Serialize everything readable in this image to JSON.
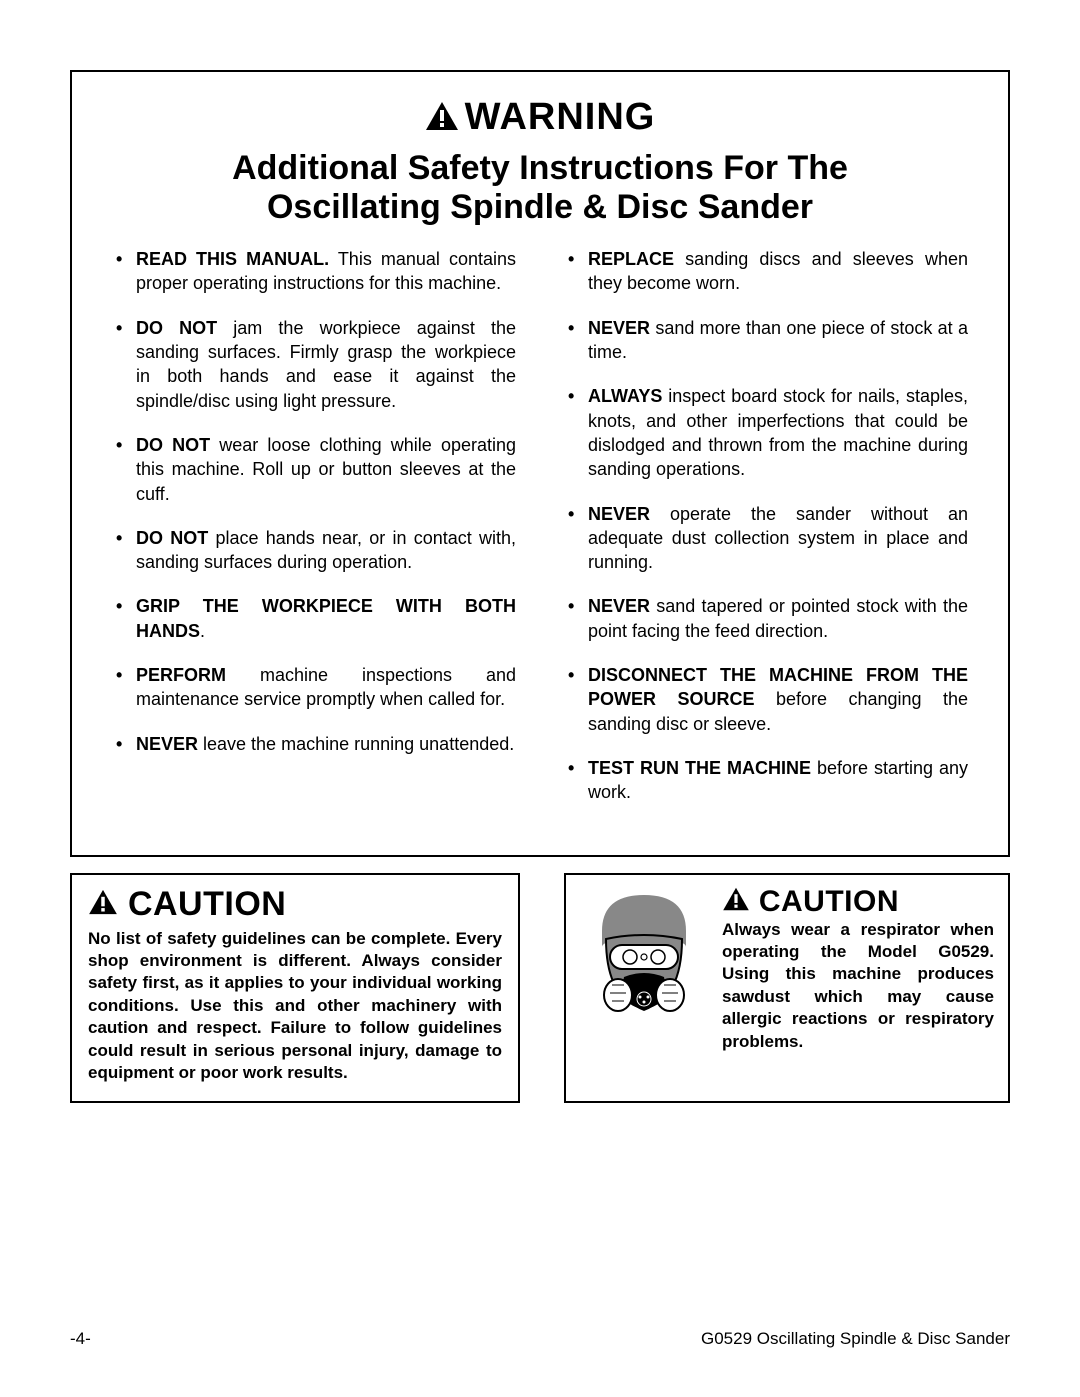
{
  "warning": {
    "header": "WARNING",
    "subtitle_line1": "Additional Safety Instructions For The",
    "subtitle_line2": "Oscillating Spindle & Disc Sander",
    "left_items": [
      {
        "bold": "READ THIS MANUAL.",
        "rest": " This manual contains proper operating instructions for this machine."
      },
      {
        "bold": "DO NOT",
        "rest": " jam the workpiece against the sanding surfaces. Firmly grasp the workpiece in both hands and ease it against the spindle/disc using light pressure."
      },
      {
        "bold": "DO NOT",
        "rest": " wear loose clothing while operating this machine. Roll up or button sleeves at the cuff."
      },
      {
        "bold": "DO NOT",
        "rest": " place hands near, or in contact with, sanding surfaces during operation."
      },
      {
        "bold": "GRIP THE WORKPIECE WITH BOTH HANDS",
        "rest": "."
      },
      {
        "bold": "PERFORM",
        "rest": " machine inspections and maintenance service promptly when called for."
      },
      {
        "bold": "NEVER",
        "rest": " leave the machine running unattended."
      }
    ],
    "right_items": [
      {
        "bold": "REPLACE",
        "rest": " sanding discs and sleeves when they become worn."
      },
      {
        "bold": "NEVER",
        "rest": " sand more than one piece of stock at a time."
      },
      {
        "bold": "ALWAYS",
        "rest": " inspect board stock for nails, staples, knots, and other imperfections that could be dislodged and thrown from the machine during sanding operations."
      },
      {
        "bold": "NEVER",
        "rest": " operate the sander without an adequate dust collection system in place and running."
      },
      {
        "bold": "NEVER",
        "rest": " sand tapered or pointed stock with the point facing the feed direction."
      },
      {
        "bold": "DISCONNECT THE MACHINE FROM THE POWER SOURCE",
        "rest": " before changing the sanding disc or sleeve."
      },
      {
        "bold": "TEST RUN THE MACHINE",
        "rest": " before starting any work."
      }
    ]
  },
  "caution1": {
    "header": "CAUTION",
    "text": "No list of safety guidelines can be complete. Every shop environment is different. Always consider safety first, as it applies to your individual working conditions. Use this and other machinery with caution and respect. Failure to follow guidelines could result in serious personal injury, damage to equipment or poor work results."
  },
  "caution2": {
    "header": "CAUTION",
    "text": "Always wear a respirator when operating the Model G0529. Using this machine produces sawdust which may cause allergic reactions or respiratory problems."
  },
  "footer": {
    "page": "-4-",
    "title": "G0529 Oscillating Spindle & Disc Sander"
  },
  "icon_colors": {
    "triangle_fill": "#000000",
    "exclaim_fill": "#ffffff",
    "face_fill": "#888888",
    "mask_fill": "#000000"
  }
}
